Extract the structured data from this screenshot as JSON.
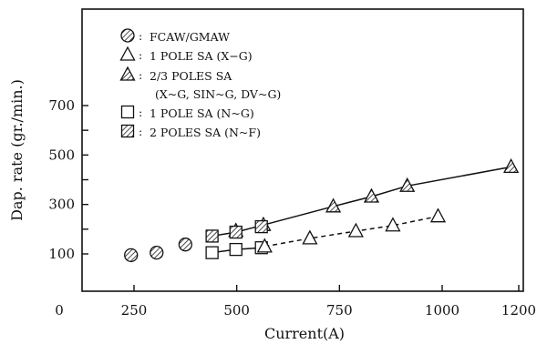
{
  "chart_data": {
    "type": "line",
    "xlabel": "Current(A)",
    "ylabel": "Dap. rate (gr./min.)",
    "xlim": [
      0,
      1200
    ],
    "ylim": [
      50,
      700
    ],
    "x_ticks": [
      {
        "value": 0,
        "label": "0"
      },
      {
        "value": 250,
        "label": "250"
      },
      {
        "value": 500,
        "label": "500"
      },
      {
        "value": 750,
        "label": "750"
      },
      {
        "value": 1000,
        "label": "1000"
      },
      {
        "value": 1200,
        "label": "1200"
      }
    ],
    "y_ticks": [
      {
        "value": 100,
        "label": "100"
      },
      {
        "value": 300,
        "label": "300"
      },
      {
        "value": 500,
        "label": "500"
      },
      {
        "value": 700,
        "label": "700"
      }
    ],
    "y_minor_ticks": [
      200,
      400,
      600
    ],
    "grid": false,
    "legend_placement": "top-left",
    "legend": [
      {
        "marker": "hatched-circle",
        "colon": ":",
        "text": "FCAW/GMAW"
      },
      {
        "marker": "open-triangle",
        "colon": ":",
        "text": "1 POLE SA (X−G)"
      },
      {
        "marker": "hatched-triangle",
        "colon": ":",
        "text": "2/3 POLES SA"
      },
      {
        "marker": "",
        "colon": "",
        "text": "(X~G, SIN~G, DV~G)"
      },
      {
        "marker": "open-square",
        "colon": ":",
        "text": "1 POLE SA (N~G)"
      },
      {
        "marker": "hatched-square",
        "colon": ":",
        "text": "2 POLES SA (N~F)"
      }
    ],
    "series": [
      {
        "name": "FCAW/GMAW",
        "marker": "hatched-circle",
        "line": "none",
        "points": [
          [
            240,
            95
          ],
          [
            305,
            105
          ],
          [
            375,
            138
          ]
        ]
      },
      {
        "name": "1 POLE SA (X−G)",
        "marker": "open-triangle",
        "line": "none",
        "points": [
          [
            498,
            193
          ],
          [
            565,
            217
          ]
        ]
      },
      {
        "name": "2/3 POLES SA",
        "marker": "hatched-triangle",
        "line": "solid",
        "points": [
          [
            735,
            292
          ],
          [
            828,
            332
          ],
          [
            915,
            375
          ],
          [
            1180,
            452
          ]
        ]
      },
      {
        "name": "1 POLE SA (N~G)",
        "marker": "open-square",
        "line": "solid",
        "points": [
          [
            440,
            105
          ],
          [
            498,
            118
          ],
          [
            560,
            125
          ]
        ]
      },
      {
        "name": "2 POLES SA (N~F)",
        "marker": "hatched-square",
        "line": "solid",
        "points": [
          [
            440,
            172
          ],
          [
            498,
            188
          ],
          [
            560,
            210
          ]
        ]
      },
      {
        "name": "",
        "marker": "open-triangle",
        "line": "dashed",
        "points": [
          [
            568,
            130
          ],
          [
            678,
            163
          ],
          [
            790,
            192
          ],
          [
            880,
            215
          ],
          [
            990,
            252
          ]
        ]
      }
    ],
    "connector_lines": [
      {
        "style": "solid",
        "points": [
          [
            440,
            172
          ],
          [
            498,
            188
          ],
          [
            565,
            217
          ],
          [
            735,
            292
          ],
          [
            828,
            332
          ],
          [
            915,
            375
          ],
          [
            1180,
            452
          ]
        ]
      },
      {
        "style": "solid",
        "points": [
          [
            440,
            105
          ],
          [
            498,
            118
          ],
          [
            560,
            125
          ],
          [
            568,
            130
          ]
        ]
      },
      {
        "style": "dashed",
        "points": [
          [
            568,
            130
          ],
          [
            678,
            163
          ],
          [
            790,
            192
          ],
          [
            880,
            215
          ],
          [
            990,
            252
          ]
        ]
      }
    ]
  }
}
